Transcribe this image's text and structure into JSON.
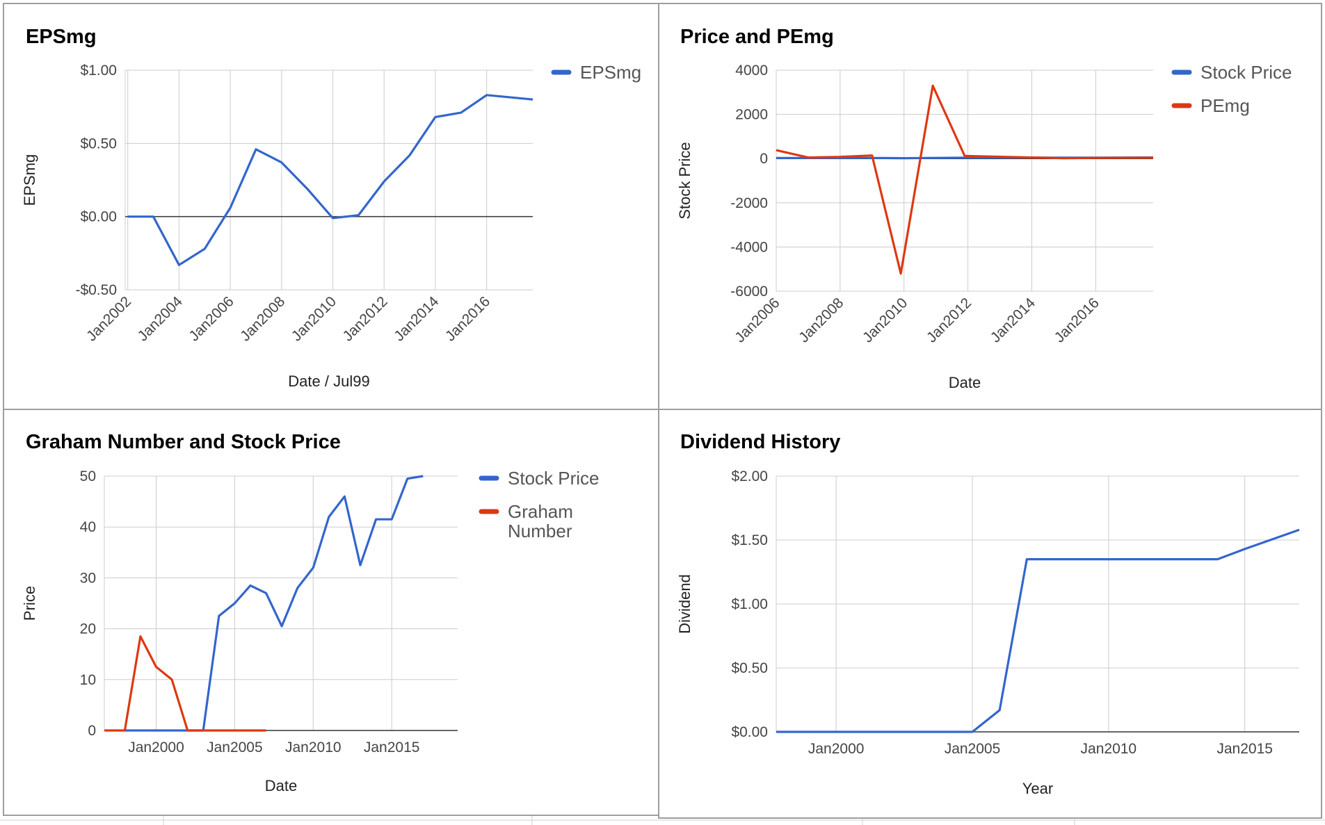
{
  "colors": {
    "blue": "#3366cc",
    "red": "#dc3912",
    "grid": "#cccccc",
    "zero": "#333333"
  },
  "chart_data": [
    {
      "id": "eps",
      "type": "line",
      "title": "EPSmg",
      "xlabel": "Date / Jul99",
      "ylabel": "EPSmg",
      "xlim": [
        2001.9,
        2017.8
      ],
      "ylim": [
        -0.5,
        1.0
      ],
      "x_ticks": [
        2002,
        2004,
        2006,
        2008,
        2010,
        2012,
        2014,
        2016
      ],
      "x_tick_labels": [
        "Jan2002",
        "Jan2004",
        "Jan2006",
        "Jan2008",
        "Jan2010",
        "Jan2012",
        "Jan2014",
        "Jan2016"
      ],
      "y_ticks": [
        -0.5,
        0,
        0.5,
        1.0
      ],
      "y_tick_labels": [
        "-$0.50",
        "$0.00",
        "$0.50",
        "$1.00"
      ],
      "zero_line": 0,
      "legend_position": "right",
      "series": [
        {
          "name": "EPSmg",
          "color": "#3366cc",
          "x": [
            2002.0,
            2003.0,
            2004.0,
            2005.0,
            2006.0,
            2007.0,
            2008.0,
            2009.0,
            2010.0,
            2011.0,
            2012.0,
            2013.0,
            2014.0,
            2015.0,
            2016.0,
            2017.8
          ],
          "y": [
            0.0,
            0.0,
            -0.33,
            -0.22,
            0.06,
            0.46,
            0.37,
            0.19,
            -0.01,
            0.01,
            0.24,
            0.42,
            0.68,
            0.71,
            0.83,
            0.8
          ]
        }
      ]
    },
    {
      "id": "price-pe",
      "type": "line",
      "title": "Price and PEmg",
      "xlabel": "Date",
      "ylabel": "Stock Price",
      "xlim": [
        2006.0,
        2017.8
      ],
      "ylim": [
        -6000,
        4000
      ],
      "x_ticks": [
        2006,
        2008,
        2010,
        2012,
        2014,
        2016
      ],
      "x_tick_labels": [
        "Jan2006",
        "Jan2008",
        "Jan2010",
        "Jan2012",
        "Jan2014",
        "Jan2016"
      ],
      "y_ticks": [
        -6000,
        -4000,
        -2000,
        0,
        2000,
        4000
      ],
      "y_tick_labels": [
        "-6000",
        "-4000",
        "-2000",
        "0",
        "2000",
        "4000"
      ],
      "zero_line": 0,
      "legend_position": "right",
      "series": [
        {
          "name": "Stock Price",
          "color": "#3366cc",
          "x": [
            2006.0,
            2008.0,
            2009.0,
            2010.0,
            2011.0,
            2012.0,
            2014.0,
            2016.0,
            2017.8
          ],
          "y": [
            25,
            28,
            27,
            20,
            30,
            40,
            45,
            41,
            50
          ]
        },
        {
          "name": "PEmg",
          "color": "#dc3912",
          "x": [
            2006.0,
            2007.0,
            2008.0,
            2009.0,
            2009.9,
            2010.9,
            2011.9,
            2014.0,
            2015.0,
            2016.0,
            2017.8
          ],
          "y": [
            380,
            50,
            80,
            140,
            -5200,
            3300,
            120,
            50,
            20,
            30,
            40
          ]
        }
      ]
    },
    {
      "id": "graham",
      "type": "line",
      "title": "Graham Number and Stock Price",
      "xlabel": "Date",
      "ylabel": "Price",
      "xlim": [
        1996.7,
        2019.2
      ],
      "ylim": [
        0,
        50
      ],
      "x_ticks": [
        2000,
        2005,
        2010,
        2015
      ],
      "x_tick_labels": [
        "Jan2000",
        "Jan2005",
        "Jan2010",
        "Jan2015"
      ],
      "y_ticks": [
        0,
        10,
        20,
        30,
        40,
        50
      ],
      "y_tick_labels": [
        "0",
        "10",
        "20",
        "30",
        "40",
        "50"
      ],
      "zero_line": 0,
      "legend_position": "right",
      "series": [
        {
          "name": "Stock Price",
          "color": "#3366cc",
          "x": [
            1998.0,
            2000.0,
            2001.0,
            2002.0,
            2003.0,
            2004.0,
            2005.0,
            2006.0,
            2007.0,
            2008.0,
            2009.0,
            2010.0,
            2011.0,
            2012.0,
            2013.0,
            2014.0,
            2015.0,
            2016.0,
            2017.0
          ],
          "y": [
            0,
            0,
            0,
            0,
            0,
            22.5,
            25,
            28.5,
            27,
            20.5,
            28,
            32,
            42,
            46,
            32.5,
            41.5,
            41.5,
            49.5,
            50
          ]
        },
        {
          "name": "Graham Number",
          "color": "#dc3912",
          "x": [
            1996.7,
            1998.0,
            1999.0,
            2000.0,
            2001.0,
            2002.0,
            2003.0,
            2004.0,
            2005.0,
            2006.0,
            2007.0
          ],
          "y": [
            0,
            0,
            18.5,
            12.5,
            10,
            0,
            0,
            0,
            0,
            0,
            0
          ]
        }
      ]
    },
    {
      "id": "dividend",
      "type": "line",
      "title": "Dividend History",
      "xlabel": "Year",
      "ylabel": "Dividend",
      "xlim": [
        1997.8,
        2017.0
      ],
      "ylim": [
        0,
        2.0
      ],
      "x_ticks": [
        2000,
        2005,
        2010,
        2015
      ],
      "x_tick_labels": [
        "Jan2000",
        "Jan2005",
        "Jan2010",
        "Jan2015"
      ],
      "y_ticks": [
        0,
        0.5,
        1.0,
        1.5,
        2.0
      ],
      "y_tick_labels": [
        "$0.00",
        "$0.50",
        "$1.00",
        "$1.50",
        "$2.00"
      ],
      "zero_line": 0,
      "legend_position": "none",
      "series": [
        {
          "name": "",
          "color": "#3366cc",
          "x": [
            1997.8,
            2005.0,
            2006.0,
            2007.0,
            2014.0,
            2015.0,
            2017.0
          ],
          "y": [
            0,
            0,
            0.17,
            1.35,
            1.35,
            1.43,
            1.58
          ]
        }
      ]
    }
  ]
}
